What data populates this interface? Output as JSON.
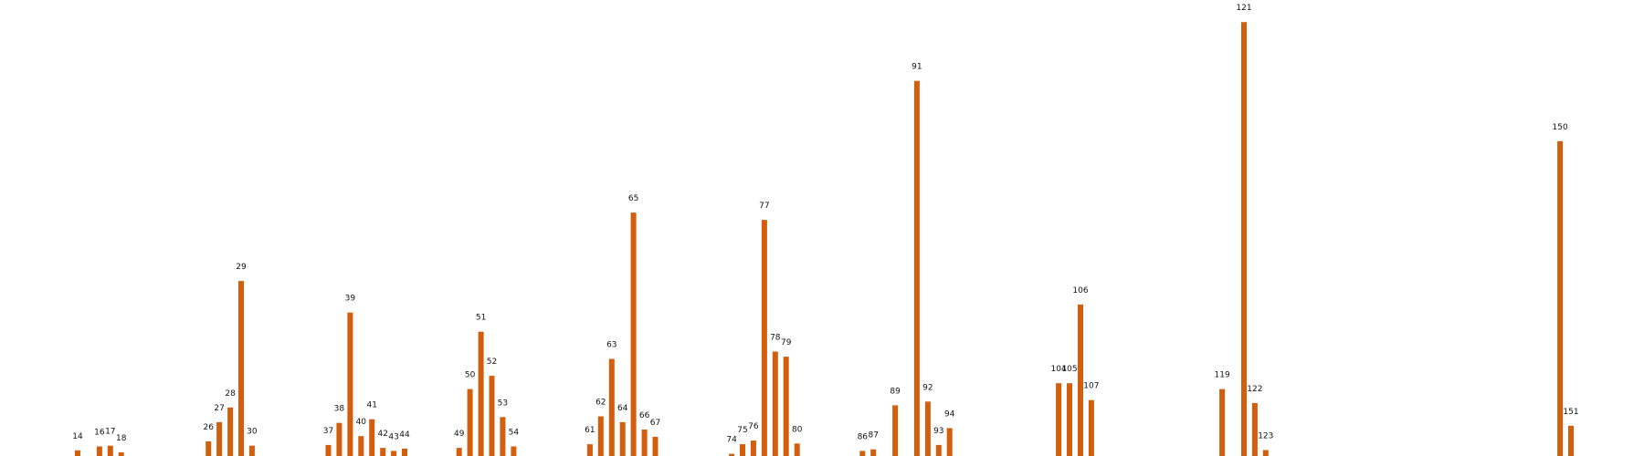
{
  "chart_data": {
    "type": "bar",
    "title": "",
    "xlabel": "",
    "ylabel": "",
    "axes_visible": false,
    "grid": false,
    "bar_color": "#d35f0e",
    "x": [
      14,
      16,
      17,
      18,
      26,
      27,
      28,
      29,
      30,
      37,
      38,
      39,
      40,
      41,
      42,
      43,
      44,
      49,
      50,
      51,
      52,
      53,
      54,
      61,
      62,
      63,
      64,
      65,
      66,
      67,
      74,
      75,
      76,
      77,
      78,
      79,
      80,
      86,
      87,
      89,
      91,
      92,
      93,
      94,
      104,
      105,
      106,
      107,
      119,
      121,
      122,
      123,
      150,
      151
    ],
    "values": [
      0.0077,
      0.013,
      0.014,
      0.005,
      0.02,
      0.046,
      0.066,
      0.238,
      0.014,
      0.015,
      0.045,
      0.195,
      0.027,
      0.05,
      0.011,
      0.007,
      0.01,
      0.011,
      0.091,
      0.169,
      0.109,
      0.053,
      0.013,
      0.016,
      0.054,
      0.132,
      0.046,
      0.331,
      0.036,
      0.026,
      0.003,
      0.016,
      0.021,
      0.321,
      0.142,
      0.135,
      0.017,
      0.007,
      0.009,
      0.069,
      0.51,
      0.074,
      0.015,
      0.038,
      0.099,
      0.099,
      0.206,
      0.076,
      0.091,
      0.59,
      0.072,
      0.008,
      0.428,
      0.041
    ],
    "ylim": [
      0,
      0.62
    ]
  }
}
